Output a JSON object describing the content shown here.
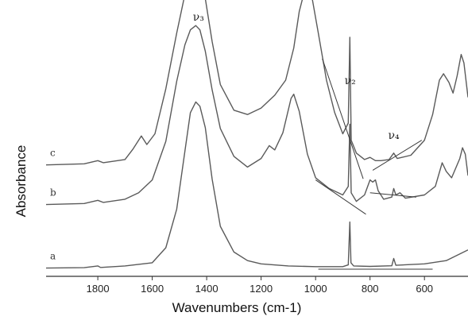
{
  "chart_data": {
    "type": "line",
    "xlabel": "Wavenumbers (cm-1)",
    "ylabel": "Absorbance",
    "x_reversed": true,
    "xlim": [
      1990,
      440
    ],
    "x_ticks": [
      1800,
      1600,
      1400,
      1200,
      1000,
      800,
      600
    ],
    "x_tick_labels": [
      "1800",
      "1600",
      "1400",
      "1200",
      "1000",
      "800",
      "600"
    ],
    "grid": false,
    "band_labels": [
      {
        "text": "ν₃",
        "x": 1430
      },
      {
        "text": "ν₂",
        "x": 873
      },
      {
        "text": "ν₄",
        "x": 713
      }
    ],
    "series": [
      {
        "name": "a",
        "points": [
          [
            1990,
            0.5
          ],
          [
            1850,
            0.7
          ],
          [
            1800,
            1.5
          ],
          [
            1790,
            0.8
          ],
          [
            1700,
            1.5
          ],
          [
            1600,
            3
          ],
          [
            1550,
            10
          ],
          [
            1510,
            28
          ],
          [
            1480,
            55
          ],
          [
            1460,
            73
          ],
          [
            1440,
            78
          ],
          [
            1425,
            76
          ],
          [
            1405,
            66
          ],
          [
            1380,
            42
          ],
          [
            1350,
            20
          ],
          [
            1300,
            8
          ],
          [
            1250,
            4
          ],
          [
            1200,
            2.5
          ],
          [
            1100,
            1.5
          ],
          [
            1000,
            1.2
          ],
          [
            900,
            1.2
          ],
          [
            880,
            2
          ],
          [
            874,
            22
          ],
          [
            870,
            3
          ],
          [
            860,
            1.5
          ],
          [
            800,
            1.3
          ],
          [
            720,
            1.6
          ],
          [
            713,
            5
          ],
          [
            705,
            1.8
          ],
          [
            600,
            2.5
          ],
          [
            520,
            4
          ],
          [
            440,
            9
          ]
        ]
      },
      {
        "name": "b",
        "points": [
          [
            1990,
            0.5
          ],
          [
            1850,
            1
          ],
          [
            1800,
            2.5
          ],
          [
            1780,
            1.5
          ],
          [
            1700,
            3
          ],
          [
            1650,
            6
          ],
          [
            1600,
            12
          ],
          [
            1550,
            30
          ],
          [
            1510,
            58
          ],
          [
            1480,
            75
          ],
          [
            1460,
            82
          ],
          [
            1440,
            84
          ],
          [
            1425,
            82
          ],
          [
            1405,
            72
          ],
          [
            1380,
            54
          ],
          [
            1350,
            36
          ],
          [
            1300,
            23
          ],
          [
            1250,
            18
          ],
          [
            1200,
            22
          ],
          [
            1170,
            28
          ],
          [
            1150,
            26
          ],
          [
            1120,
            34
          ],
          [
            1090,
            50
          ],
          [
            1080,
            52
          ],
          [
            1060,
            44
          ],
          [
            1030,
            24
          ],
          [
            1000,
            13
          ],
          [
            950,
            8
          ],
          [
            900,
            5
          ],
          [
            880,
            9
          ],
          [
            874,
            38
          ],
          [
            869,
            6
          ],
          [
            850,
            2
          ],
          [
            820,
            5
          ],
          [
            800,
            12
          ],
          [
            790,
            11
          ],
          [
            780,
            12
          ],
          [
            770,
            7
          ],
          [
            750,
            3
          ],
          [
            720,
            4
          ],
          [
            713,
            8
          ],
          [
            705,
            5
          ],
          [
            690,
            6
          ],
          [
            670,
            3.5
          ],
          [
            600,
            5
          ],
          [
            560,
            9
          ],
          [
            535,
            20
          ],
          [
            520,
            16
          ],
          [
            500,
            13
          ],
          [
            470,
            22
          ],
          [
            460,
            27
          ],
          [
            450,
            24
          ],
          [
            440,
            14
          ]
        ]
      },
      {
        "name": "c",
        "points": [
          [
            1990,
            0.5
          ],
          [
            1850,
            1
          ],
          [
            1800,
            2.5
          ],
          [
            1780,
            1.5
          ],
          [
            1700,
            3
          ],
          [
            1670,
            8
          ],
          [
            1640,
            14
          ],
          [
            1620,
            10
          ],
          [
            1590,
            15
          ],
          [
            1550,
            36
          ],
          [
            1510,
            62
          ],
          [
            1480,
            80
          ],
          [
            1460,
            88
          ],
          [
            1440,
            90
          ],
          [
            1425,
            88
          ],
          [
            1405,
            78
          ],
          [
            1380,
            58
          ],
          [
            1350,
            38
          ],
          [
            1300,
            26
          ],
          [
            1250,
            24
          ],
          [
            1200,
            27
          ],
          [
            1150,
            33
          ],
          [
            1110,
            40
          ],
          [
            1080,
            55
          ],
          [
            1060,
            72
          ],
          [
            1040,
            82
          ],
          [
            1030,
            83
          ],
          [
            1015,
            80
          ],
          [
            990,
            62
          ],
          [
            960,
            40
          ],
          [
            930,
            25
          ],
          [
            900,
            15
          ],
          [
            880,
            20
          ],
          [
            874,
            60
          ],
          [
            869,
            12
          ],
          [
            850,
            6
          ],
          [
            820,
            3
          ],
          [
            800,
            4
          ],
          [
            780,
            2.5
          ],
          [
            760,
            2.5
          ],
          [
            730,
            3
          ],
          [
            713,
            6
          ],
          [
            700,
            3.5
          ],
          [
            650,
            5
          ],
          [
            600,
            12
          ],
          [
            570,
            24
          ],
          [
            545,
            40
          ],
          [
            530,
            43
          ],
          [
            510,
            39
          ],
          [
            495,
            34
          ],
          [
            480,
            42
          ],
          [
            465,
            52
          ],
          [
            455,
            48
          ],
          [
            440,
            32
          ]
        ]
      }
    ]
  }
}
